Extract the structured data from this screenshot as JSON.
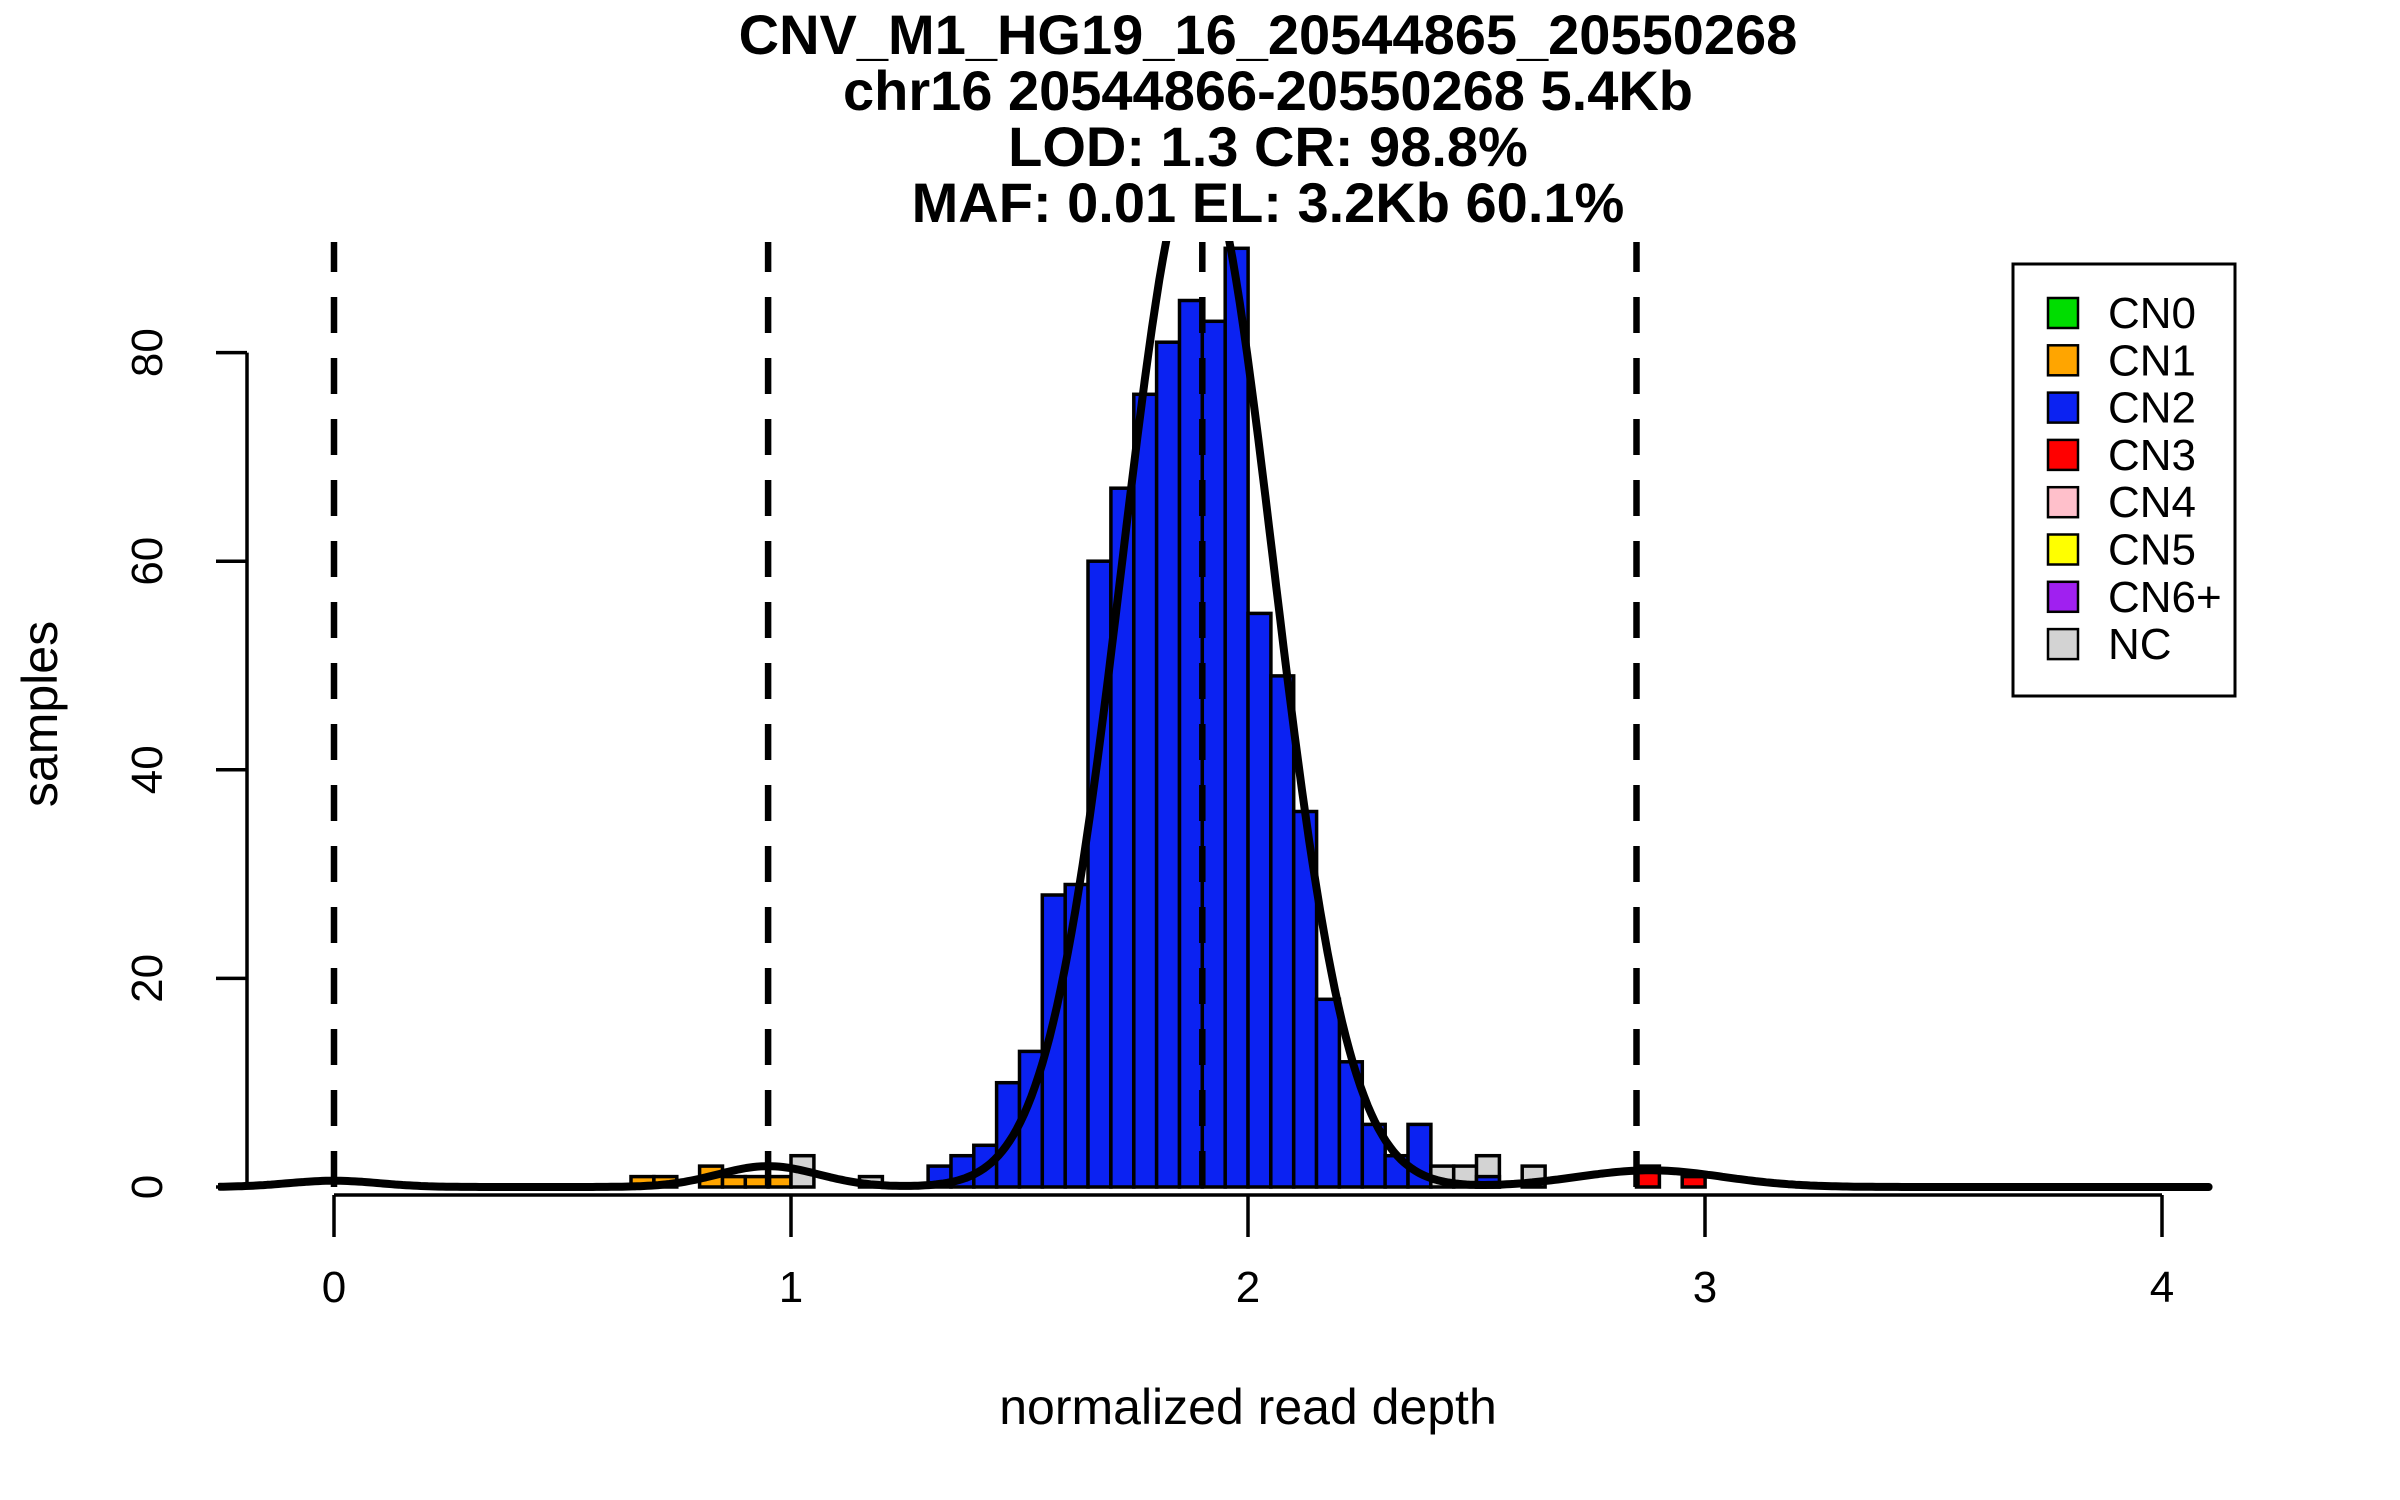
{
  "title": {
    "line1": "CNV_M1_HG19_16_20544865_20550268",
    "line2": "chr16 20544866-20550268 5.4Kb",
    "line3": "LOD: 1.3 CR: 98.8%",
    "line4": "MAF: 0.01 EL: 3.2Kb 60.1%"
  },
  "axes": {
    "x": {
      "label": "normalized read depth",
      "ticks": [
        0,
        1,
        2,
        3,
        4
      ],
      "range": [
        -0.25,
        4.11
      ]
    },
    "y": {
      "label": "samples",
      "ticks": [
        0,
        20,
        40,
        60,
        80
      ],
      "range": [
        0,
        90.5
      ]
    }
  },
  "legend": {
    "items": [
      {
        "label": "CN0",
        "color": "#00DD00"
      },
      {
        "label": "CN1",
        "color": "#FFA500"
      },
      {
        "label": "CN2",
        "color": "#0B22F2"
      },
      {
        "label": "CN3",
        "color": "#FF0000"
      },
      {
        "label": "CN4",
        "color": "#FFC0CB"
      },
      {
        "label": "CN5",
        "color": "#FFFF00"
      },
      {
        "label": "CN6+",
        "color": "#A020F0"
      },
      {
        "label": "NC",
        "color": "#D3D3D3"
      }
    ]
  },
  "chart_data": {
    "type": "bar",
    "subtype": "histogram-with-density",
    "title": "CNV_M1_HG19_16_20544865_20550268",
    "xlabel": "normalized read depth",
    "ylabel": "samples",
    "xlim": [
      -0.25,
      4.11
    ],
    "ylim": [
      0,
      90.5
    ],
    "grid": false,
    "legend_position": "top-right",
    "bin_width": 0.05,
    "bars": [
      {
        "x": 0.65,
        "count": 1,
        "cn": "CN1"
      },
      {
        "x": 0.7,
        "count": 1,
        "cn": "CN1"
      },
      {
        "x": 0.8,
        "count": 2,
        "cn": "CN1"
      },
      {
        "x": 0.85,
        "count": 1,
        "cn": "CN1"
      },
      {
        "x": 0.9,
        "count": 1,
        "cn": "CN1"
      },
      {
        "x": 0.95,
        "count": 1,
        "cn": "CN1"
      },
      {
        "x": 1.0,
        "count": 3,
        "cn": "NC"
      },
      {
        "x": 1.15,
        "count": 1,
        "cn": "NC"
      },
      {
        "x": 1.3,
        "count": 2,
        "cn": "CN2"
      },
      {
        "x": 1.35,
        "count": 3,
        "cn": "CN2"
      },
      {
        "x": 1.4,
        "count": 4,
        "cn": "CN2"
      },
      {
        "x": 1.45,
        "count": 10,
        "cn": "CN2"
      },
      {
        "x": 1.5,
        "count": 13,
        "cn": "CN2"
      },
      {
        "x": 1.55,
        "count": 28,
        "cn": "CN2"
      },
      {
        "x": 1.6,
        "count": 29,
        "cn": "CN2"
      },
      {
        "x": 1.65,
        "count": 60,
        "cn": "CN2"
      },
      {
        "x": 1.7,
        "count": 67,
        "cn": "CN2"
      },
      {
        "x": 1.75,
        "count": 76,
        "cn": "CN2"
      },
      {
        "x": 1.8,
        "count": 81,
        "cn": "CN2"
      },
      {
        "x": 1.85,
        "count": 85,
        "cn": "CN2"
      },
      {
        "x": 1.9,
        "count": 83,
        "cn": "CN2"
      },
      {
        "x": 1.95,
        "count": 90,
        "cn": "CN2"
      },
      {
        "x": 2.0,
        "count": 55,
        "cn": "CN2"
      },
      {
        "x": 2.05,
        "count": 49,
        "cn": "CN2"
      },
      {
        "x": 2.1,
        "count": 36,
        "cn": "CN2"
      },
      {
        "x": 2.15,
        "count": 18,
        "cn": "CN2"
      },
      {
        "x": 2.2,
        "count": 12,
        "cn": "CN2"
      },
      {
        "x": 2.25,
        "count": 6,
        "cn": "CN2"
      },
      {
        "x": 2.3,
        "count": 3,
        "cn": "CN2"
      },
      {
        "x": 2.35,
        "count": 6,
        "cn": "CN2"
      },
      {
        "x": 2.4,
        "count": 2,
        "cn": "NC"
      },
      {
        "x": 2.45,
        "count": 2,
        "cn": "NC"
      },
      {
        "x": 2.5,
        "count": 3,
        "cn": "NC"
      },
      {
        "x": 2.5,
        "count": 1,
        "cn": "CN2"
      },
      {
        "x": 2.6,
        "count": 2,
        "cn": "NC"
      },
      {
        "x": 2.85,
        "count": 2,
        "cn": "CN3"
      },
      {
        "x": 2.95,
        "count": 1,
        "cn": "CN3"
      }
    ],
    "density_components": [
      {
        "mean": 0.0,
        "sd": 0.1,
        "peak": 0.6
      },
      {
        "mean": 0.95,
        "sd": 0.11,
        "peak": 2.0
      },
      {
        "mean": 1.89,
        "sd": 0.165,
        "peak": 99.0
      },
      {
        "mean": 2.88,
        "sd": 0.16,
        "peak": 1.6
      }
    ],
    "cluster_center_lines_x": [
      0,
      0.95,
      1.9,
      2.85
    ]
  },
  "colors": {
    "CN0": "#00DD00",
    "CN1": "#FFA500",
    "CN2": "#0B22F2",
    "CN3": "#FF0000",
    "CN4": "#FFC0CB",
    "CN5": "#FFFF00",
    "CN6+": "#A020F0",
    "NC": "#D3D3D3",
    "curve": "#000000",
    "axis": "#000000"
  }
}
